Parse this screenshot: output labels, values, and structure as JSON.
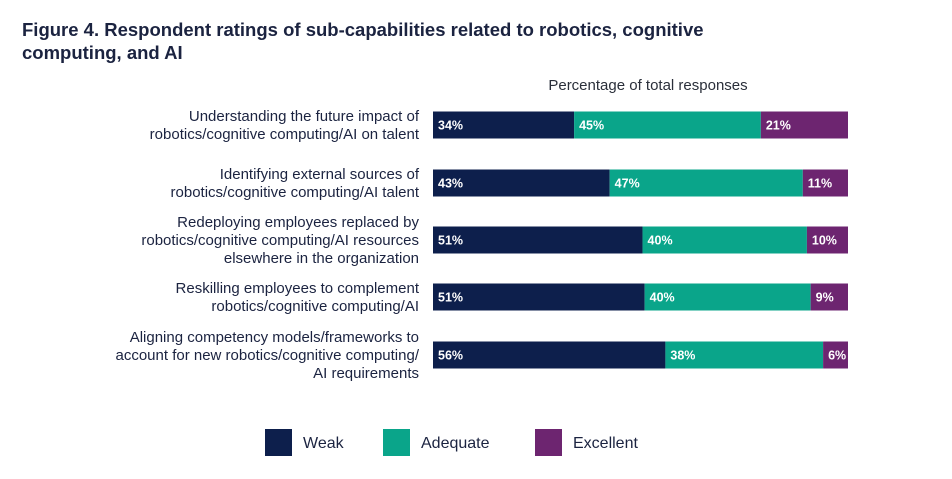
{
  "title": "Figure 4. Respondent ratings of sub-capabilities related to robotics, cognitive computing, and AI",
  "chart_data": {
    "type": "bar",
    "orientation": "horizontal",
    "stacked": true,
    "xlabel": "Percentage of total responses",
    "categories": [
      [
        "Understanding the future impact of",
        "robotics/cognitive computing/AI on talent"
      ],
      [
        "Identifying external sources of",
        "robotics/cognitive computing/AI talent"
      ],
      [
        "Redeploying employees replaced by",
        "robotics/cognitive computing/AI resources",
        "elsewhere in the organization"
      ],
      [
        "Reskilling employees to complement",
        "robotics/cognitive computing/AI"
      ],
      [
        "Aligning competency models/frameworks to",
        "account for new robotics/cognitive computing/",
        "AI requirements"
      ]
    ],
    "series": [
      {
        "name": "Weak",
        "color": "#0d1f4c",
        "values": [
          34,
          43,
          51,
          51,
          56
        ]
      },
      {
        "name": "Adequate",
        "color": "#0aa58a",
        "values": [
          45,
          47,
          40,
          40,
          38
        ]
      },
      {
        "name": "Excellent",
        "color": "#6d2570",
        "values": [
          21,
          11,
          10,
          9,
          6
        ]
      }
    ],
    "data_labels": [
      [
        "34%",
        "43%",
        "51%",
        "51%",
        "56%"
      ],
      [
        "45%",
        "47%",
        "40%",
        "40%",
        "38%"
      ],
      [
        "21%",
        "11%",
        "10%",
        "9%",
        "6%"
      ]
    ],
    "legend_position": "bottom",
    "grid": false
  }
}
